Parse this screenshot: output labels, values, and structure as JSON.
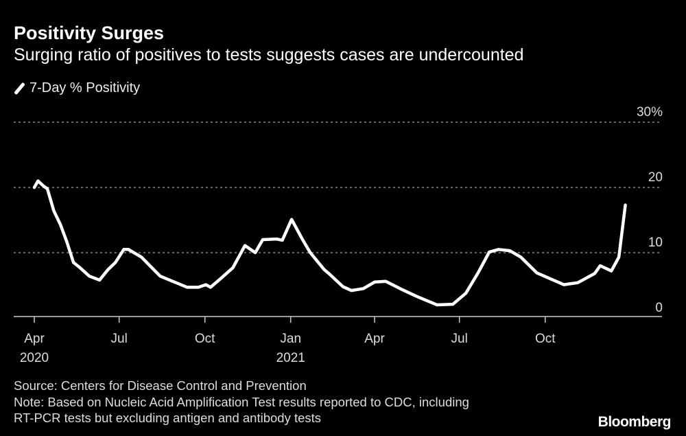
{
  "header": {
    "title": "Positivity Surges",
    "subtitle": "Surging ratio of positives to tests suggests cases are undercounted"
  },
  "footer": {
    "source": "Source: Centers for Disease Control and Prevention",
    "note_line1": "Note: Based on Nucleic Acid Amplification Test results reported to CDC, including",
    "note_line2": "RT-PCR tests but excluding antigen and antibody tests",
    "logo": "Bloomberg"
  },
  "chart_data": {
    "type": "line",
    "title": "Positivity Surges",
    "xlabel": "",
    "ylabel": "",
    "x_unit": "days since 2020-04-01",
    "ylim": [
      0,
      30
    ],
    "xlim": [
      0,
      640
    ],
    "grid": true,
    "legend_position": "top-left",
    "y_ticks": [
      {
        "value": 0,
        "label": "0"
      },
      {
        "value": 10,
        "label": "10"
      },
      {
        "value": 20,
        "label": "20"
      },
      {
        "value": 30,
        "label": "30%"
      }
    ],
    "x_ticks": [
      {
        "value": 0,
        "label": "Apr",
        "sublabel": "2020"
      },
      {
        "value": 91,
        "label": "Jul",
        "sublabel": ""
      },
      {
        "value": 183,
        "label": "Oct",
        "sublabel": ""
      },
      {
        "value": 275,
        "label": "Jan",
        "sublabel": "2021"
      },
      {
        "value": 365,
        "label": "Apr",
        "sublabel": ""
      },
      {
        "value": 456,
        "label": "Jul",
        "sublabel": ""
      },
      {
        "value": 548,
        "label": "Oct",
        "sublabel": ""
      }
    ],
    "series": [
      {
        "name": "7-Day % Positivity",
        "color": "#ffffff",
        "x": [
          0,
          4,
          10,
          14,
          21,
          28,
          35,
          42,
          49,
          59,
          70,
          79,
          87,
          96,
          101,
          115,
          135,
          147,
          164,
          176,
          184,
          189,
          199,
          213,
          226,
          237,
          245,
          260,
          266,
          276,
          287,
          296,
          311,
          316,
          331,
          340,
          353,
          365,
          377,
          395,
          410,
          432,
          449,
          463,
          476,
          488,
          498,
          510,
          522,
          539,
          568,
          583,
          601,
          607,
          619,
          627,
          634
        ],
        "y": [
          20,
          21,
          20.2,
          19.8,
          16.4,
          14.3,
          11.6,
          8.5,
          7.7,
          6.4,
          5.8,
          7.4,
          8.5,
          10.5,
          10.5,
          9.3,
          6.4,
          5.7,
          4.7,
          4.7,
          5.1,
          4.7,
          5.9,
          7.7,
          11.1,
          10,
          12,
          12.1,
          11.9,
          15.1,
          12.2,
          10,
          7.4,
          6.8,
          4.8,
          4.2,
          4.5,
          5.5,
          5.6,
          4.3,
          3.3,
          2,
          2.1,
          3.8,
          6.9,
          10.1,
          10.5,
          10.3,
          9.3,
          6.9,
          5.1,
          5.4,
          6.8,
          8,
          7.2,
          9.3,
          17.3
        ]
      }
    ]
  }
}
